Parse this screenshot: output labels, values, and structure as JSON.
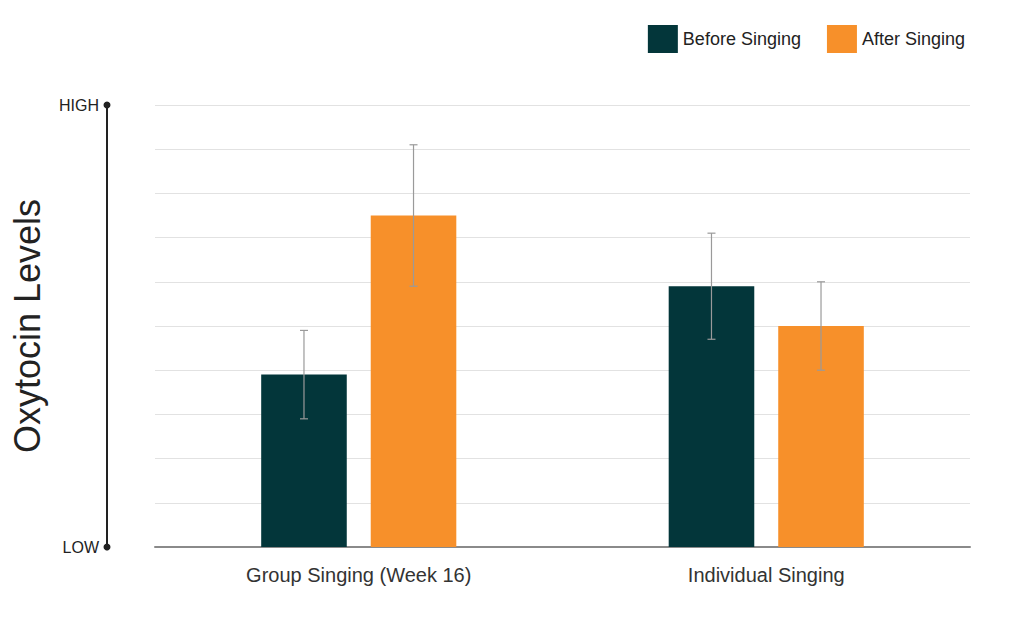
{
  "chart_data": {
    "type": "bar",
    "y_label": "Oxytocin Levels",
    "categories": [
      "Group Singing (Week 16)",
      "Individual Singing"
    ],
    "series": [
      {
        "name": "Before Singing",
        "color": "#03363a",
        "values": [
          3.9,
          5.9
        ],
        "errors": [
          1.0,
          1.2
        ]
      },
      {
        "name": "After Singing",
        "color": "#f7902a",
        "values": [
          7.5,
          5.0
        ],
        "errors": [
          1.6,
          1.0
        ]
      }
    ],
    "ylim": [
      0,
      10
    ],
    "yticks": [
      {
        "value": 0,
        "label": "LOW"
      },
      {
        "value": 1,
        "label": null
      },
      {
        "value": 2,
        "label": null
      },
      {
        "value": 3,
        "label": null
      },
      {
        "value": 4,
        "label": null
      },
      {
        "value": 5,
        "label": null
      },
      {
        "value": 6,
        "label": null
      },
      {
        "value": 7,
        "label": null
      },
      {
        "value": 8,
        "label": null
      },
      {
        "value": 9,
        "label": null
      },
      {
        "value": 10,
        "label": "HIGH"
      }
    ],
    "grid": true,
    "legend": "top right"
  }
}
